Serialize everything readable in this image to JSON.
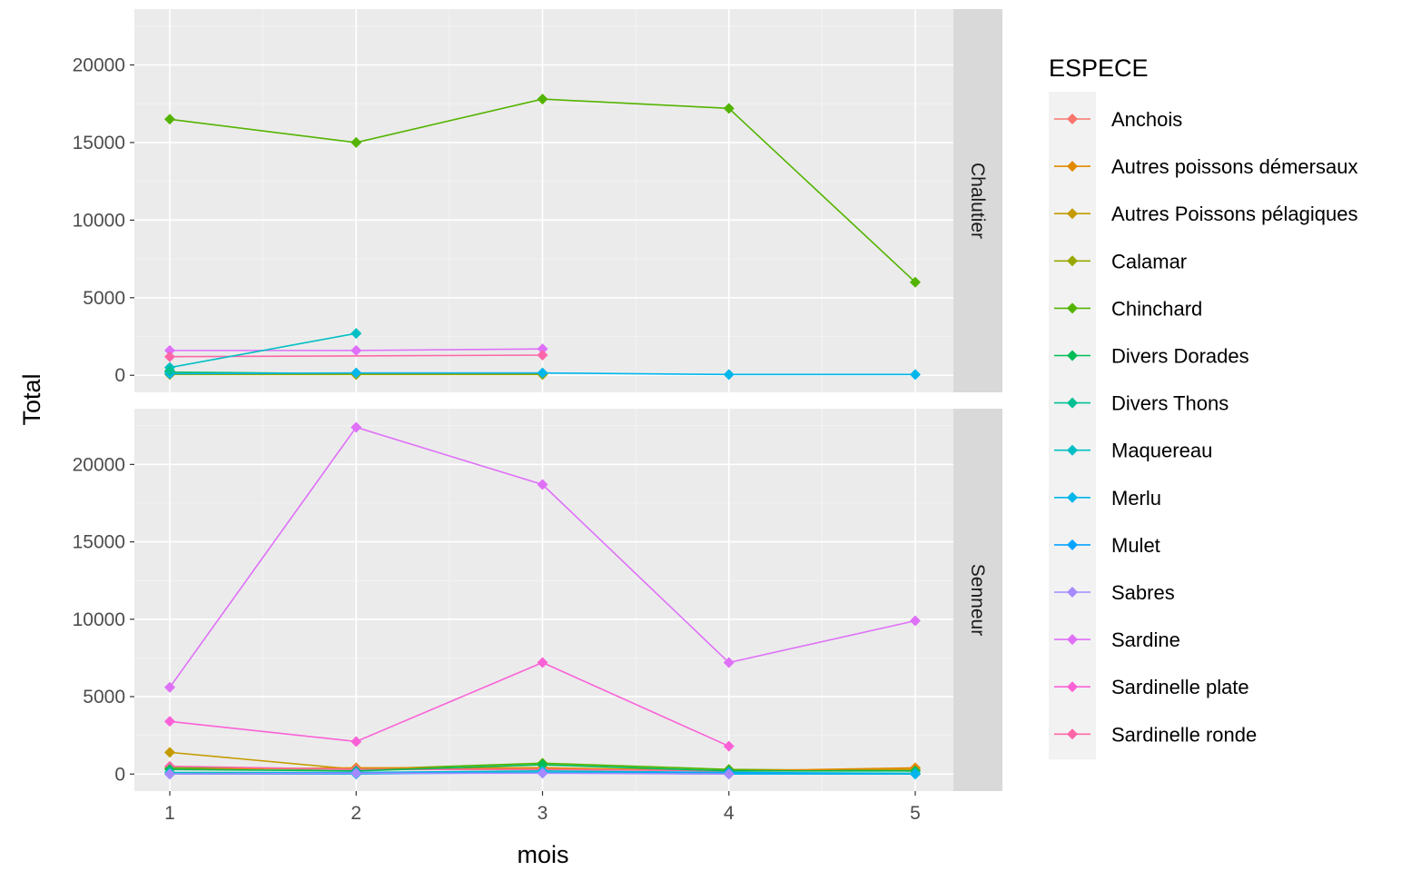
{
  "chart_data": {
    "type": "line",
    "xlabel": "mois",
    "ylabel": "Total",
    "x": [
      1,
      2,
      3,
      4,
      5
    ],
    "x_ticks": [
      "1",
      "2",
      "3",
      "4",
      "5"
    ],
    "ylim": [
      -1100,
      23600
    ],
    "y_ticks": [
      "0",
      "5000",
      "10000",
      "15000",
      "20000"
    ],
    "grid": true,
    "legend": {
      "title": "ESPECE",
      "placement": "right"
    },
    "colors": {
      "Anchois": "#F8766D",
      "Autres poissons démersaux": "#E38900",
      "Autres Poissons pélagiques": "#C49A00",
      "Calamar": "#99A800",
      "Chinchard": "#53B400",
      "Divers Dorades": "#00BC56",
      "Divers Thons": "#00C094",
      "Maquereau": "#00BFC4",
      "Merlu": "#00B6EB",
      "Mulet": "#06A4FF",
      "Sabres": "#A58AFF",
      "Sardine": "#DF70F8",
      "Sardinelle plate": "#FB61D7",
      "Sardinelle ronde": "#FF66A8"
    },
    "facets": [
      {
        "label": "Chalutier",
        "series": [
          {
            "name": "Chinchard",
            "x": [
              1,
              2,
              3,
              4,
              5
            ],
            "values": [
              16500,
              15000,
              17800,
              17200,
              6000
            ]
          },
          {
            "name": "Sardine",
            "x": [
              1,
              2,
              3
            ],
            "values": [
              1600,
              1600,
              1700
            ]
          },
          {
            "name": "Sardinelle ronde",
            "x": [
              1,
              3
            ],
            "values": [
              1200,
              1300
            ]
          },
          {
            "name": "Maquereau",
            "x": [
              1,
              2
            ],
            "values": [
              500,
              2700
            ]
          },
          {
            "name": "Divers Dorades",
            "x": [
              1,
              2,
              3
            ],
            "values": [
              200,
              100,
              100
            ]
          },
          {
            "name": "Calamar",
            "x": [
              1,
              2,
              3
            ],
            "values": [
              50,
              50,
              50
            ]
          },
          {
            "name": "Merlu",
            "x": [
              1,
              2,
              3,
              4,
              5
            ],
            "values": [
              100,
              150,
              150,
              50,
              50
            ]
          },
          {
            "name": "Divers Thons",
            "x": [
              1
            ],
            "values": [
              300
            ]
          }
        ]
      },
      {
        "label": "Senneur",
        "series": [
          {
            "name": "Sardine",
            "x": [
              1,
              2,
              3,
              4,
              5
            ],
            "values": [
              5600,
              22400,
              18700,
              7200,
              9900
            ]
          },
          {
            "name": "Sardinelle plate",
            "x": [
              1,
              2,
              3,
              4
            ],
            "values": [
              3400,
              2100,
              7200,
              1800
            ]
          },
          {
            "name": "Autres Poissons pélagiques",
            "x": [
              1,
              2,
              3,
              4,
              5
            ],
            "values": [
              1400,
              300,
              400,
              200,
              300
            ]
          },
          {
            "name": "Chinchard",
            "x": [
              1,
              2,
              3,
              4,
              5
            ],
            "values": [
              400,
              300,
              700,
              300,
              200
            ]
          },
          {
            "name": "Autres poissons démersaux",
            "x": [
              1,
              2,
              3,
              4,
              5
            ],
            "values": [
              300,
              400,
              400,
              200,
              400
            ]
          },
          {
            "name": "Sardinelle ronde",
            "x": [
              1,
              2,
              3,
              4
            ],
            "values": [
              500,
              300,
              300,
              200
            ]
          },
          {
            "name": "Divers Dorades",
            "x": [
              1,
              2,
              3,
              4,
              5
            ],
            "values": [
              300,
              200,
              600,
              200,
              200
            ]
          },
          {
            "name": "Maquereau",
            "x": [
              1,
              2,
              3,
              4,
              5
            ],
            "values": [
              100,
              100,
              200,
              100,
              50
            ]
          },
          {
            "name": "Mulet",
            "x": [
              1,
              2,
              3,
              4,
              5
            ],
            "values": [
              0,
              100,
              100,
              100,
              0
            ]
          },
          {
            "name": "Merlu",
            "x": [
              1,
              2,
              3,
              4,
              5
            ],
            "values": [
              0,
              0,
              100,
              0,
              0
            ]
          },
          {
            "name": "Sabres",
            "x": [
              1,
              2,
              3,
              4
            ],
            "values": [
              0,
              50,
              50,
              0
            ]
          }
        ]
      }
    ]
  }
}
